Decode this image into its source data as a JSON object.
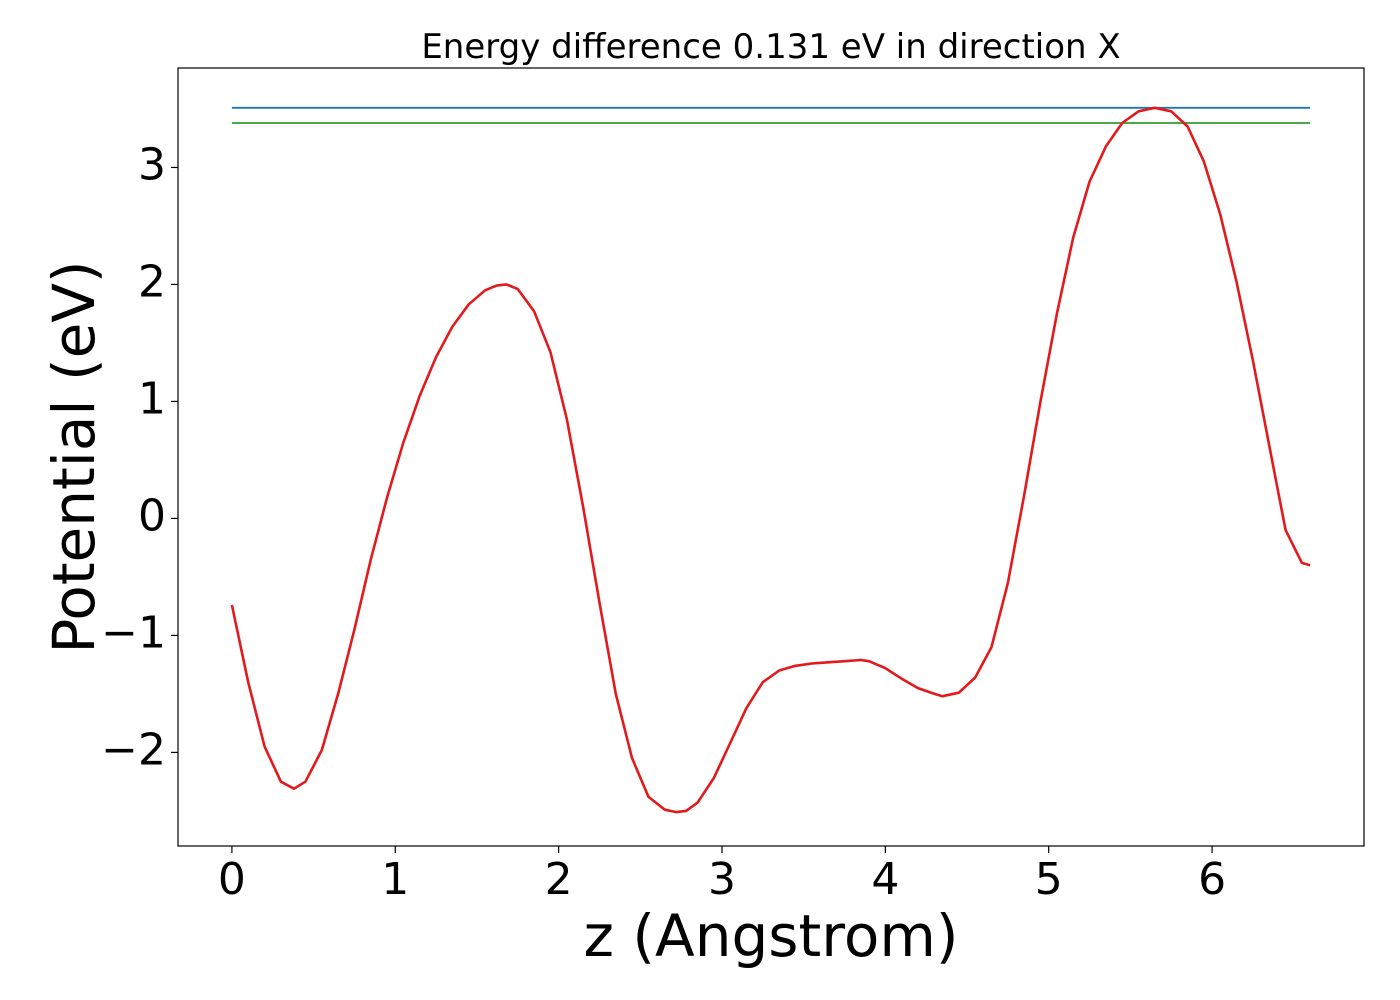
{
  "chart_data": {
    "type": "line",
    "title": "Energy difference 0.131 eV in direction X",
    "xlabel": "z (Angstrom)",
    "ylabel": "Potential (eV)",
    "xlim": [
      -0.33,
      6.93
    ],
    "ylim": [
      -2.8,
      3.85
    ],
    "xticks": [
      0,
      1,
      2,
      3,
      4,
      5,
      6
    ],
    "xtick_labels": [
      "0",
      "1",
      "2",
      "3",
      "4",
      "5",
      "6"
    ],
    "yticks": [
      -2,
      -1,
      0,
      1,
      2,
      3
    ],
    "ytick_labels": [
      "−2",
      "−1",
      "0",
      "1",
      "2",
      "3"
    ],
    "grid": false,
    "series": [
      {
        "color": "#1f77b4",
        "x": [
          0,
          6.6
        ],
        "y": [
          3.51,
          3.51
        ]
      },
      {
        "color": "#2ca02c",
        "x": [
          0,
          6.6
        ],
        "y": [
          3.38,
          3.38
        ]
      },
      {
        "color": "#e31a1c",
        "x": [
          0,
          0.1,
          0.2,
          0.3,
          0.38,
          0.45,
          0.55,
          0.65,
          0.75,
          0.85,
          0.95,
          1.05,
          1.15,
          1.25,
          1.35,
          1.45,
          1.55,
          1.62,
          1.68,
          1.75,
          1.85,
          1.95,
          2.05,
          2.15,
          2.25,
          2.35,
          2.45,
          2.55,
          2.65,
          2.72,
          2.78,
          2.85,
          2.95,
          3.05,
          3.15,
          3.25,
          3.35,
          3.45,
          3.55,
          3.65,
          3.75,
          3.85,
          3.9,
          4.0,
          4.1,
          4.2,
          4.3,
          4.35,
          4.45,
          4.55,
          4.65,
          4.75,
          4.85,
          4.95,
          5.05,
          5.15,
          5.25,
          5.35,
          5.45,
          5.55,
          5.65,
          5.75,
          5.85,
          5.95,
          6.05,
          6.15,
          6.25,
          6.35,
          6.45,
          6.55,
          6.6
        ],
        "y": [
          -0.74,
          -1.4,
          -1.95,
          -2.25,
          -2.31,
          -2.25,
          -1.98,
          -1.5,
          -0.95,
          -0.35,
          0.18,
          0.65,
          1.05,
          1.38,
          1.64,
          1.83,
          1.95,
          1.99,
          2.0,
          1.96,
          1.77,
          1.42,
          0.85,
          0.1,
          -0.72,
          -1.5,
          -2.05,
          -2.38,
          -2.49,
          -2.51,
          -2.5,
          -2.43,
          -2.22,
          -1.92,
          -1.62,
          -1.4,
          -1.3,
          -1.26,
          -1.24,
          -1.23,
          -1.22,
          -1.21,
          -1.22,
          -1.28,
          -1.37,
          -1.45,
          -1.5,
          -1.52,
          -1.49,
          -1.36,
          -1.1,
          -0.55,
          0.2,
          1.0,
          1.75,
          2.4,
          2.88,
          3.18,
          3.38,
          3.48,
          3.51,
          3.48,
          3.35,
          3.05,
          2.6,
          2.02,
          1.35,
          0.62,
          -0.1,
          -0.38,
          -0.4
        ]
      }
    ]
  }
}
